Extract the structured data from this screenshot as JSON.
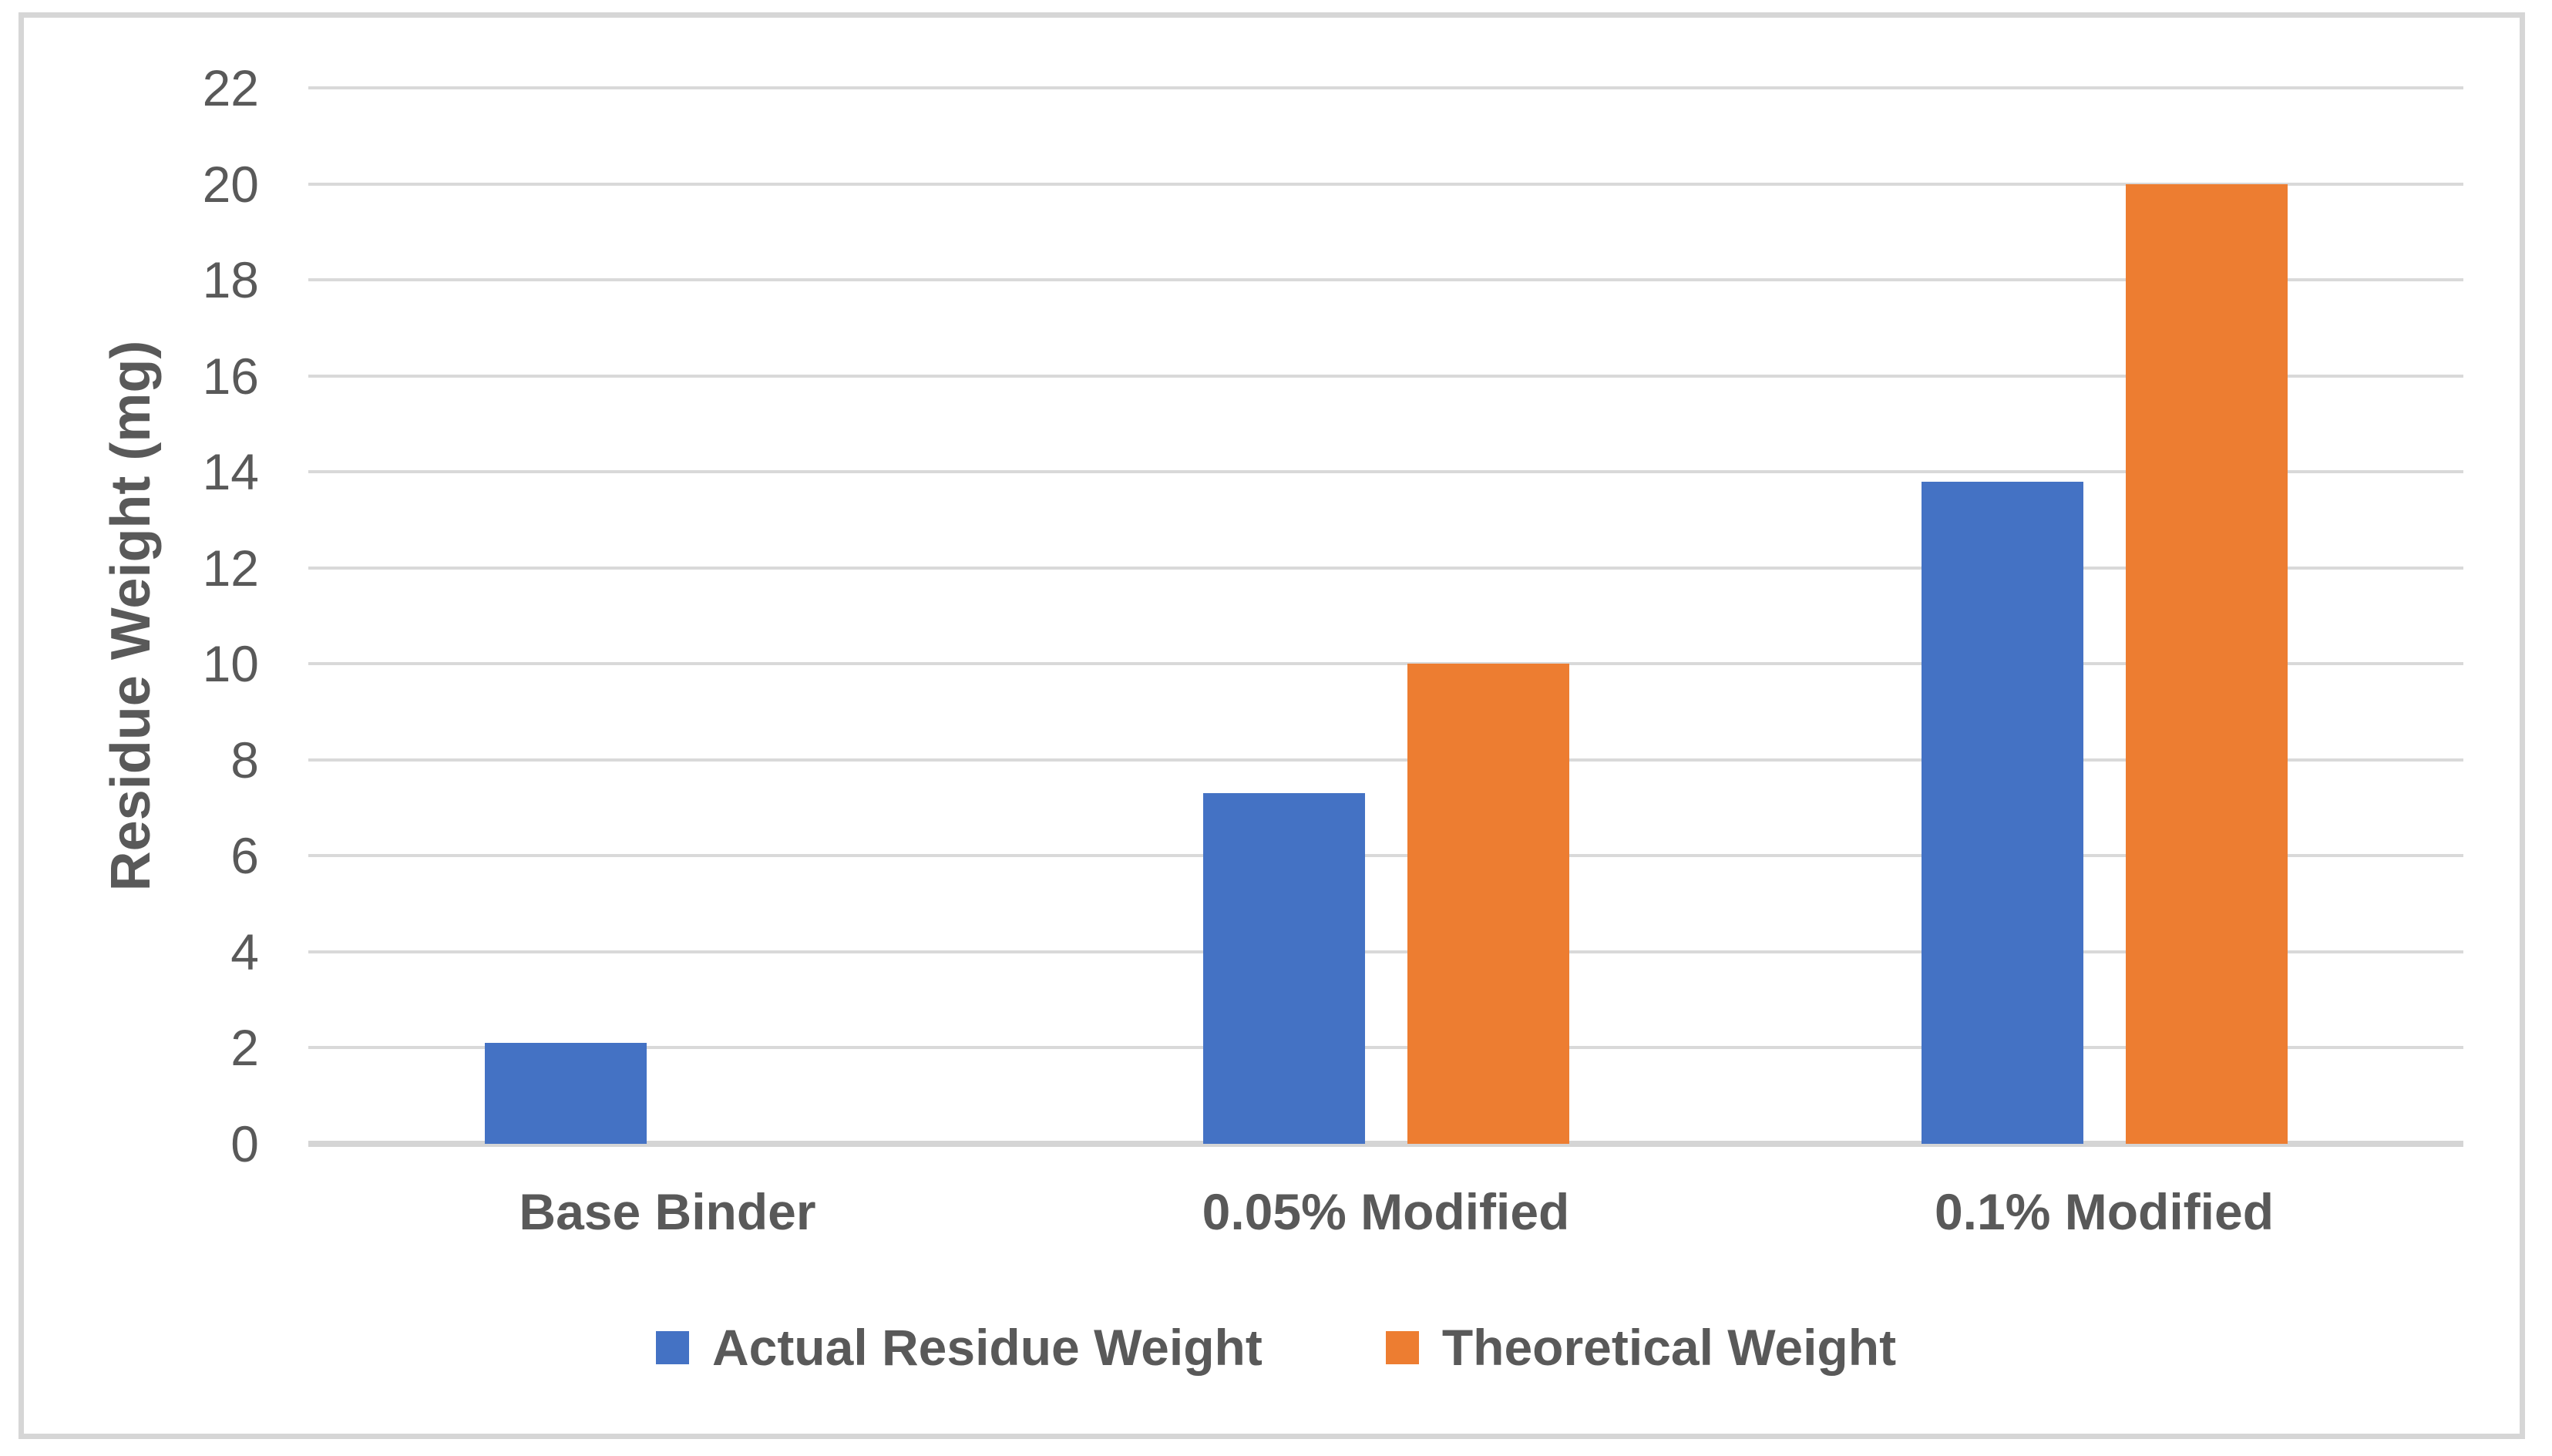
{
  "chart_data": {
    "type": "bar",
    "title": "",
    "xlabel": "",
    "ylabel": "Residue Weight (mg)",
    "categories": [
      "Base Binder",
      "0.05% Modified",
      "0.1% Modified"
    ],
    "series": [
      {
        "name": "Actual Residue Weight",
        "color": "#4472C4",
        "values": [
          2.1,
          7.3,
          13.8
        ]
      },
      {
        "name": "Theoretical Weight",
        "color": "#ED7D31",
        "values": [
          0,
          10,
          20
        ]
      }
    ],
    "ylim": [
      0,
      22
    ],
    "ytick_step": 2,
    "ytick_labels": [
      "0",
      "2",
      "4",
      "6",
      "8",
      "10",
      "12",
      "14",
      "16",
      "18",
      "20",
      "22"
    ],
    "grid": true,
    "legend_position": "bottom"
  },
  "colors": {
    "text": "#595959",
    "gridline": "#d9d9d9",
    "axis_line": "#d5d5d5",
    "frame_border": "#d6d6d6",
    "background": "#ffffff"
  }
}
